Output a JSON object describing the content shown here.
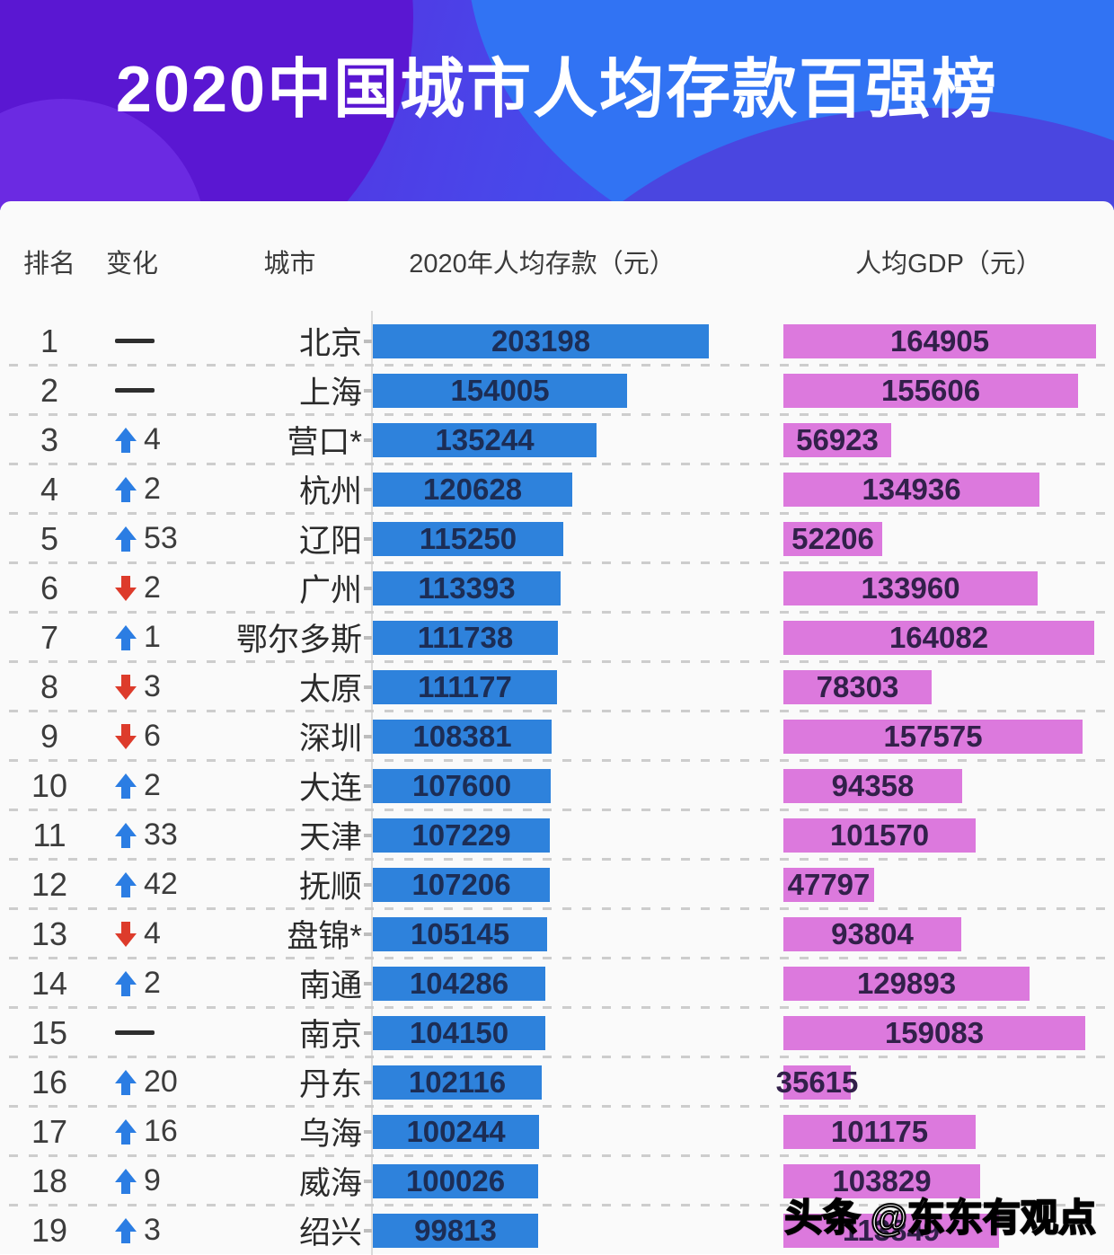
{
  "header": {
    "title": "2020中国城市人均存款百强榜"
  },
  "columns": {
    "rank": "排名",
    "change": "变化",
    "city": "城市",
    "deposit": "2020年人均存款（元）",
    "gdp": "人均GDP（元）"
  },
  "watermark": "头条 @东东有观点",
  "colors": {
    "deposit_bar": "#2e82dc",
    "gdp_bar": "#dc79dd",
    "up_arrow": "#2b7de3",
    "down_arrow": "#dd3b2b",
    "banner_purple": "#5a17d2",
    "banner_blue": "#2e68f1"
  },
  "chart_data": {
    "type": "bar",
    "orientation": "horizontal",
    "title": "2020中国城市人均存款百强榜",
    "categories": [
      "北京",
      "上海",
      "营口*",
      "杭州",
      "辽阳",
      "广州",
      "鄂尔多斯",
      "太原",
      "深圳",
      "大连",
      "天津",
      "抚顺",
      "盘锦*",
      "南通",
      "南京",
      "丹东",
      "乌海",
      "威海",
      "绍兴"
    ],
    "series": [
      {
        "name": "2020年人均存款（元）",
        "color": "#2e82dc",
        "values": [
          203198,
          154005,
          135244,
          120628,
          115250,
          113393,
          111738,
          111177,
          108381,
          107600,
          107229,
          107206,
          105145,
          104286,
          104150,
          102116,
          100244,
          100026,
          99813
        ]
      },
      {
        "name": "人均GDP（元）",
        "color": "#dc79dd",
        "values": [
          164905,
          155606,
          56923,
          134936,
          52206,
          133960,
          164082,
          78303,
          157575,
          94358,
          101570,
          47797,
          93804,
          129893,
          159083,
          35615,
          101175,
          103829,
          113849
        ]
      }
    ],
    "value_labels_on_bars": true,
    "grid": "dashed-row-separators",
    "rows": [
      {
        "rank": 1,
        "change_dir": "same",
        "change_value": null,
        "city": "北京",
        "deposit": 203198,
        "gdp": 164905
      },
      {
        "rank": 2,
        "change_dir": "same",
        "change_value": null,
        "city": "上海",
        "deposit": 154005,
        "gdp": 155606
      },
      {
        "rank": 3,
        "change_dir": "up",
        "change_value": 4,
        "city": "营口*",
        "deposit": 135244,
        "gdp": 56923
      },
      {
        "rank": 4,
        "change_dir": "up",
        "change_value": 2,
        "city": "杭州",
        "deposit": 120628,
        "gdp": 134936
      },
      {
        "rank": 5,
        "change_dir": "up",
        "change_value": 53,
        "city": "辽阳",
        "deposit": 115250,
        "gdp": 52206
      },
      {
        "rank": 6,
        "change_dir": "down",
        "change_value": 2,
        "city": "广州",
        "deposit": 113393,
        "gdp": 133960
      },
      {
        "rank": 7,
        "change_dir": "up",
        "change_value": 1,
        "city": "鄂尔多斯",
        "deposit": 111738,
        "gdp": 164082
      },
      {
        "rank": 8,
        "change_dir": "down",
        "change_value": 3,
        "city": "太原",
        "deposit": 111177,
        "gdp": 78303
      },
      {
        "rank": 9,
        "change_dir": "down",
        "change_value": 6,
        "city": "深圳",
        "deposit": 108381,
        "gdp": 157575
      },
      {
        "rank": 10,
        "change_dir": "up",
        "change_value": 2,
        "city": "大连",
        "deposit": 107600,
        "gdp": 94358
      },
      {
        "rank": 11,
        "change_dir": "up",
        "change_value": 33,
        "city": "天津",
        "deposit": 107229,
        "gdp": 101570
      },
      {
        "rank": 12,
        "change_dir": "up",
        "change_value": 42,
        "city": "抚顺",
        "deposit": 107206,
        "gdp": 47797
      },
      {
        "rank": 13,
        "change_dir": "down",
        "change_value": 4,
        "city": "盘锦*",
        "deposit": 105145,
        "gdp": 93804
      },
      {
        "rank": 14,
        "change_dir": "up",
        "change_value": 2,
        "city": "南通",
        "deposit": 104286,
        "gdp": 129893
      },
      {
        "rank": 15,
        "change_dir": "same",
        "change_value": null,
        "city": "南京",
        "deposit": 104150,
        "gdp": 159083
      },
      {
        "rank": 16,
        "change_dir": "up",
        "change_value": 20,
        "city": "丹东",
        "deposit": 102116,
        "gdp": 35615
      },
      {
        "rank": 17,
        "change_dir": "up",
        "change_value": 16,
        "city": "乌海",
        "deposit": 100244,
        "gdp": 101175
      },
      {
        "rank": 18,
        "change_dir": "up",
        "change_value": 9,
        "city": "威海",
        "deposit": 100026,
        "gdp": 103829
      },
      {
        "rank": 19,
        "change_dir": "up",
        "change_value": 3,
        "city": "绍兴",
        "deposit": 99813,
        "gdp": 113849
      }
    ]
  }
}
